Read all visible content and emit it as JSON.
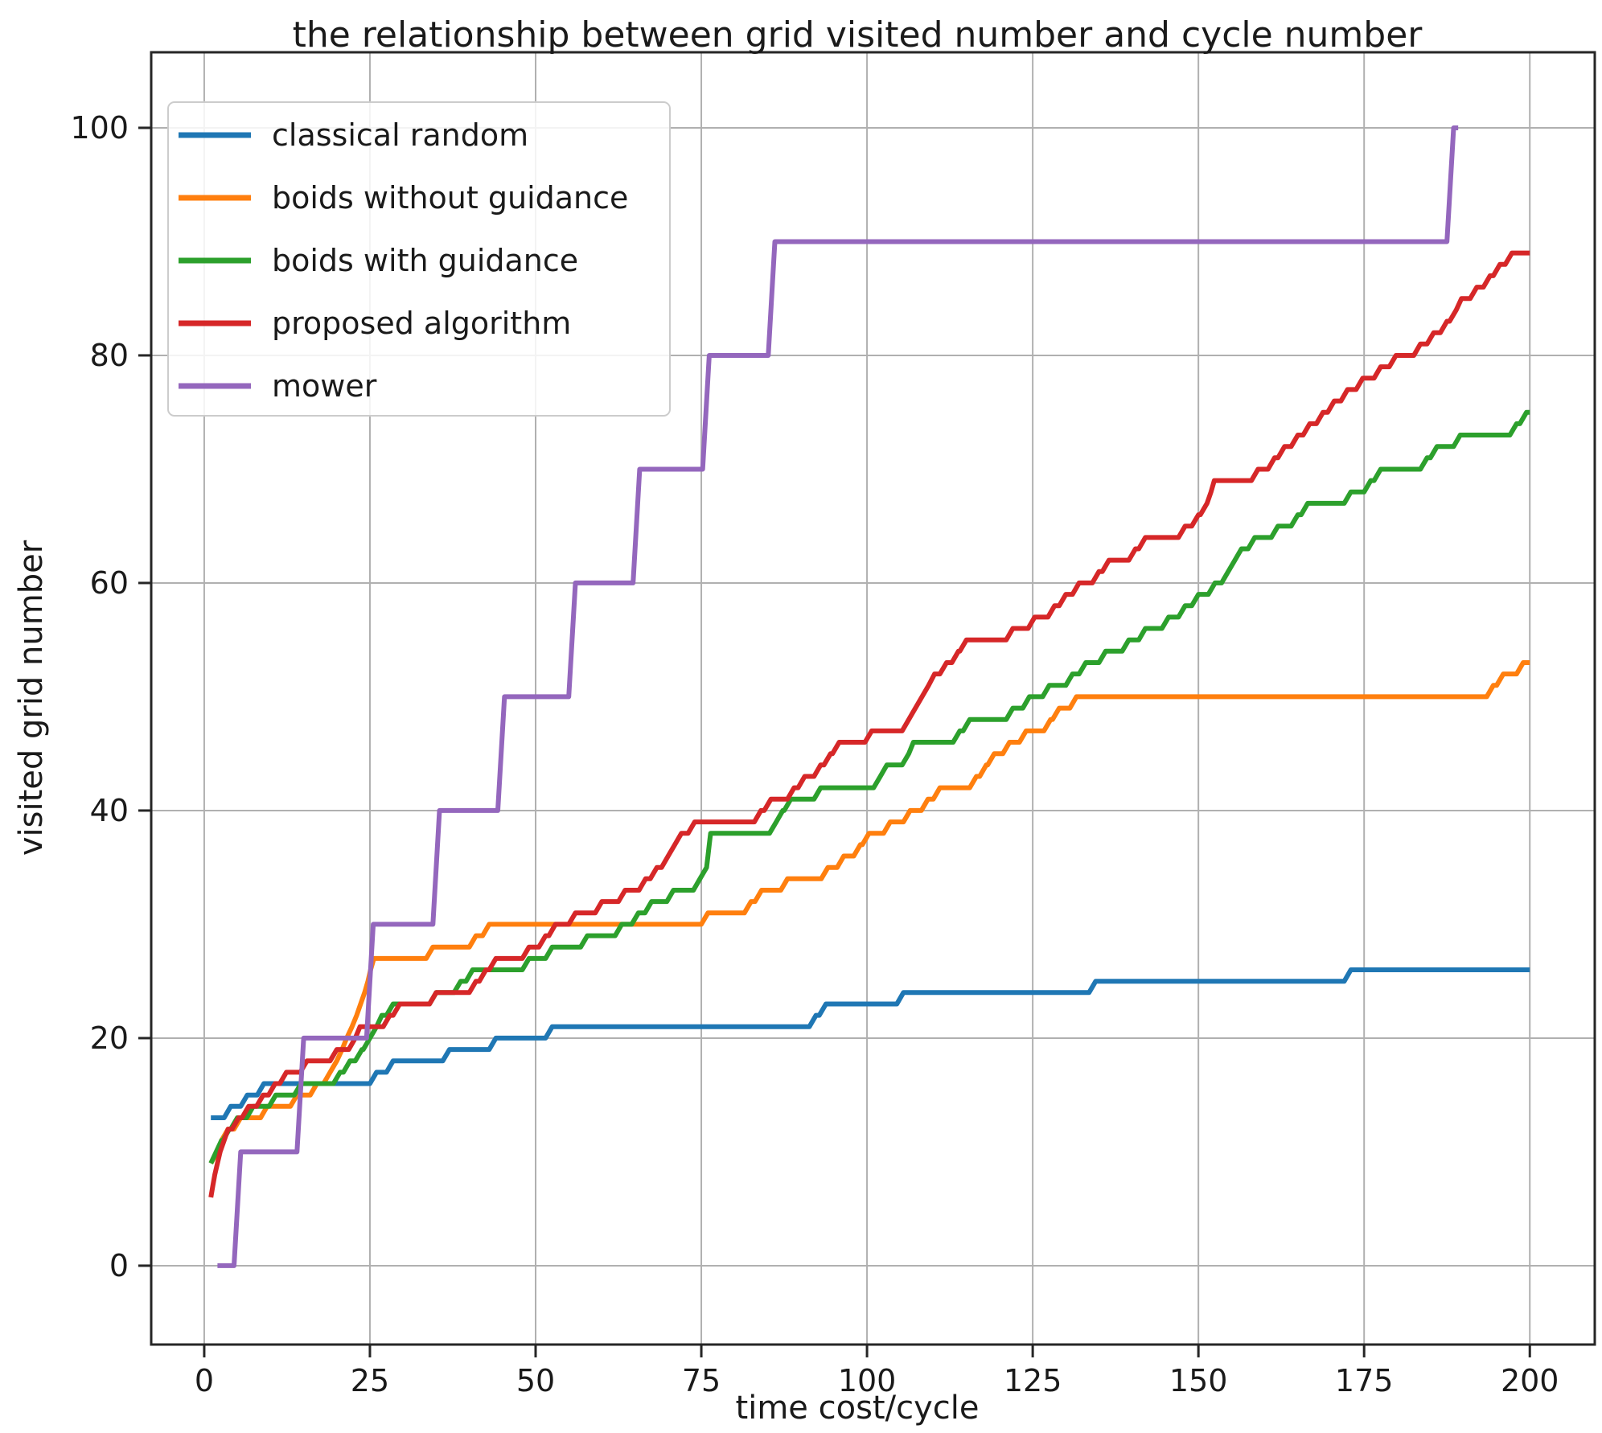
{
  "chart_data": {
    "type": "line",
    "title": "the relationship between grid visited number and cycle number",
    "xlabel": "time cost/cycle",
    "ylabel": "visited grid number",
    "grid": true,
    "grid_color": "#b0b0b0",
    "spine_color": "#262626",
    "legend_position": "upper left",
    "axes": {
      "xlim": [
        -8.0,
        209.8
      ],
      "ylim": [
        -6.93,
        106.64
      ],
      "xticks": [
        0,
        25,
        50,
        75,
        100,
        125,
        150,
        175,
        200
      ],
      "yticks": [
        0,
        20,
        40,
        60,
        80,
        100
      ]
    },
    "series": [
      {
        "name": "classical random",
        "color": "#1f77b4",
        "points": [
          [
            1,
            13
          ],
          [
            4,
            14
          ],
          [
            6.5,
            15
          ],
          [
            9,
            16
          ],
          [
            26,
            17
          ],
          [
            28.5,
            18
          ],
          [
            37,
            19
          ],
          [
            44,
            20
          ],
          [
            52.5,
            21
          ],
          [
            92.3,
            22
          ],
          [
            93.8,
            23
          ],
          [
            105.5,
            24
          ],
          [
            134.5,
            25
          ],
          [
            173,
            26
          ],
          [
            200,
            26
          ]
        ]
      },
      {
        "name": "boids without guidance",
        "color": "#ff7f0e",
        "points": [
          [
            1,
            9
          ],
          [
            2,
            10
          ],
          [
            2.6,
            11
          ],
          [
            3.6,
            12
          ],
          [
            5.5,
            13
          ],
          [
            9.5,
            14
          ],
          [
            14,
            15
          ],
          [
            17,
            16
          ],
          [
            19,
            17
          ],
          [
            20,
            18
          ],
          [
            20.8,
            19
          ],
          [
            21.5,
            20
          ],
          [
            22.3,
            21
          ],
          [
            23,
            22
          ],
          [
            23.6,
            23
          ],
          [
            24.2,
            24
          ],
          [
            24.7,
            25
          ],
          [
            25.1,
            26
          ],
          [
            25.6,
            27
          ],
          [
            34.5,
            28
          ],
          [
            41,
            29
          ],
          [
            43,
            30
          ],
          [
            76,
            31
          ],
          [
            82.5,
            32
          ],
          [
            84.1,
            33
          ],
          [
            88,
            34
          ],
          [
            94.1,
            35
          ],
          [
            96.5,
            36
          ],
          [
            99,
            37
          ],
          [
            100.3,
            38
          ],
          [
            103.5,
            39
          ],
          [
            106.5,
            40
          ],
          [
            109.2,
            41
          ],
          [
            111,
            42
          ],
          [
            116.5,
            43
          ],
          [
            118,
            44
          ],
          [
            119.2,
            45
          ],
          [
            121.5,
            46
          ],
          [
            124,
            47
          ],
          [
            127.7,
            48
          ],
          [
            129,
            49
          ],
          [
            131.6,
            50
          ],
          [
            194.5,
            51
          ],
          [
            196,
            52
          ],
          [
            199,
            53
          ],
          [
            200,
            53
          ]
        ]
      },
      {
        "name": "boids with guidance",
        "color": "#2ca02c",
        "points": [
          [
            1,
            9
          ],
          [
            1.8,
            10
          ],
          [
            2.6,
            11
          ],
          [
            3.8,
            12
          ],
          [
            5,
            13
          ],
          [
            7.4,
            14
          ],
          [
            10.8,
            15
          ],
          [
            14.6,
            16
          ],
          [
            20.5,
            17
          ],
          [
            22,
            18
          ],
          [
            23.8,
            19
          ],
          [
            25,
            20
          ],
          [
            26,
            21
          ],
          [
            26.8,
            22
          ],
          [
            28.5,
            23
          ],
          [
            35,
            24
          ],
          [
            38.7,
            25
          ],
          [
            40.5,
            26
          ],
          [
            49,
            27
          ],
          [
            52.5,
            28
          ],
          [
            57.8,
            29
          ],
          [
            63,
            30
          ],
          [
            65.5,
            31
          ],
          [
            67.5,
            32
          ],
          [
            70.8,
            33
          ],
          [
            74.8,
            34
          ],
          [
            75.8,
            35
          ],
          [
            76,
            36
          ],
          [
            76.2,
            37
          ],
          [
            76.4,
            38
          ],
          [
            86.3,
            39
          ],
          [
            87.3,
            40
          ],
          [
            88.5,
            41
          ],
          [
            93,
            42
          ],
          [
            102,
            43
          ],
          [
            103,
            44
          ],
          [
            106.3,
            45
          ],
          [
            107,
            46
          ],
          [
            114,
            47
          ],
          [
            115.5,
            48
          ],
          [
            122,
            49
          ],
          [
            124.5,
            50
          ],
          [
            127.5,
            51
          ],
          [
            131,
            52
          ],
          [
            133,
            53
          ],
          [
            136,
            54
          ],
          [
            139.5,
            55
          ],
          [
            142,
            56
          ],
          [
            145.5,
            57
          ],
          [
            148,
            58
          ],
          [
            150,
            59
          ],
          [
            152.5,
            60
          ],
          [
            154.5,
            61
          ],
          [
            155.5,
            62
          ],
          [
            156.5,
            63
          ],
          [
            158.5,
            64
          ],
          [
            162,
            65
          ],
          [
            165,
            66
          ],
          [
            166.5,
            67
          ],
          [
            173,
            68
          ],
          [
            176,
            69
          ],
          [
            177.5,
            70
          ],
          [
            184.5,
            71
          ],
          [
            186,
            72
          ],
          [
            189.5,
            73
          ],
          [
            198,
            74
          ],
          [
            199.5,
            75
          ],
          [
            200,
            75
          ]
        ]
      },
      {
        "name": "proposed algorithm",
        "color": "#d62728",
        "points": [
          [
            1,
            6
          ],
          [
            1.3,
            7
          ],
          [
            1.6,
            8
          ],
          [
            2,
            9
          ],
          [
            2.4,
            10
          ],
          [
            3,
            11
          ],
          [
            3.6,
            12
          ],
          [
            5.2,
            13
          ],
          [
            6.7,
            14
          ],
          [
            8.9,
            15
          ],
          [
            10.7,
            16
          ],
          [
            12.4,
            17
          ],
          [
            15.5,
            18
          ],
          [
            20,
            19
          ],
          [
            22.8,
            20
          ],
          [
            23.5,
            21
          ],
          [
            28,
            22
          ],
          [
            29.5,
            23
          ],
          [
            35,
            24
          ],
          [
            41,
            25
          ],
          [
            42.5,
            26
          ],
          [
            44,
            27
          ],
          [
            49,
            28
          ],
          [
            51.5,
            29
          ],
          [
            53,
            30
          ],
          [
            56,
            31
          ],
          [
            60,
            32
          ],
          [
            63.5,
            33
          ],
          [
            66.6,
            34
          ],
          [
            68.3,
            35
          ],
          [
            70,
            36
          ],
          [
            71,
            37
          ],
          [
            72,
            38
          ],
          [
            74,
            39
          ],
          [
            84,
            40
          ],
          [
            85.5,
            41
          ],
          [
            89,
            42
          ],
          [
            90.6,
            43
          ],
          [
            93,
            44
          ],
          [
            94.5,
            45
          ],
          [
            95.8,
            46
          ],
          [
            100.7,
            47
          ],
          [
            106.3,
            48
          ],
          [
            107.3,
            49
          ],
          [
            108.3,
            50
          ],
          [
            109.3,
            51
          ],
          [
            110.2,
            52
          ],
          [
            112,
            53
          ],
          [
            113.8,
            54
          ],
          [
            115,
            55
          ],
          [
            122,
            56
          ],
          [
            125.3,
            57
          ],
          [
            128.3,
            58
          ],
          [
            130,
            59
          ],
          [
            132,
            60
          ],
          [
            135,
            61
          ],
          [
            136.5,
            62
          ],
          [
            140.5,
            63
          ],
          [
            142,
            64
          ],
          [
            148,
            65
          ],
          [
            150,
            66
          ],
          [
            151.3,
            67
          ],
          [
            151.9,
            68
          ],
          [
            152.4,
            69
          ],
          [
            159,
            70
          ],
          [
            161.5,
            71
          ],
          [
            163,
            72
          ],
          [
            165,
            73
          ],
          [
            166.8,
            74
          ],
          [
            168.8,
            75
          ],
          [
            170.5,
            76
          ],
          [
            172.5,
            77
          ],
          [
            174.8,
            78
          ],
          [
            177.5,
            79
          ],
          [
            179.8,
            80
          ],
          [
            183.5,
            81
          ],
          [
            185.5,
            82
          ],
          [
            187.5,
            83
          ],
          [
            188.9,
            84
          ],
          [
            189.7,
            85
          ],
          [
            192,
            86
          ],
          [
            194,
            87
          ],
          [
            195.5,
            88
          ],
          [
            197.3,
            89
          ],
          [
            200,
            89
          ]
        ]
      },
      {
        "name": "mower",
        "color": "#9467bd",
        "points": [
          [
            2,
            0
          ],
          [
            5.5,
            10
          ],
          [
            15,
            20
          ],
          [
            25.5,
            30
          ],
          [
            35.5,
            40
          ],
          [
            45.3,
            50
          ],
          [
            56,
            60
          ],
          [
            65.7,
            70
          ],
          [
            76.2,
            80
          ],
          [
            86.1,
            90
          ],
          [
            188.5,
            100
          ],
          [
            189.2,
            100
          ]
        ]
      }
    ]
  }
}
